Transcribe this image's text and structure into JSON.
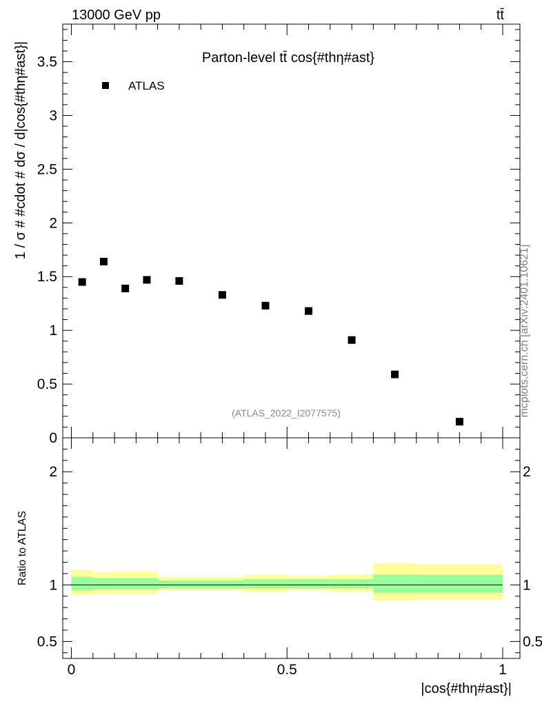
{
  "header": {
    "energy_label": "13000 GeV pp",
    "process_label": "tt̄"
  },
  "side_label": "mcplots.cern.ch [arXiv:2401.10621]",
  "watermark": "(ATLAS_2022_I2077575)",
  "chart_data": [
    {
      "type": "scatter",
      "title": "Parton-level tt̄ cos{#thη#ast}",
      "xlabel": "",
      "ylabel": "1 / σ # #cdot # dσ / d|cos{#thη#ast}|",
      "ylim": [
        0,
        3.85
      ],
      "xlim": [
        -0.02,
        1.04
      ],
      "y_ticks": [
        0,
        0.5,
        1,
        1.5,
        2,
        2.5,
        3,
        3.5
      ],
      "y_tick_labels": [
        "0",
        "0.5",
        "1",
        "1.5",
        "2",
        "2.5",
        "3",
        "3.5"
      ],
      "legend": {
        "placement": "top-left",
        "entries": [
          "ATLAS"
        ]
      },
      "series": [
        {
          "name": "ATLAS",
          "color": "#000000",
          "x": [
            0.025,
            0.075,
            0.125,
            0.175,
            0.25,
            0.35,
            0.45,
            0.55,
            0.65,
            0.75,
            0.9
          ],
          "y": [
            1.45,
            1.64,
            1.39,
            1.47,
            1.46,
            1.33,
            1.23,
            1.18,
            0.91,
            0.59,
            0.15
          ]
        }
      ]
    },
    {
      "type": "area",
      "ylabel": "Ratio to ATLAS",
      "xlabel": "|cos{#thη#ast}|",
      "xlim": [
        -0.02,
        1.04
      ],
      "ylim": [
        0.35,
        2.3
      ],
      "x_ticks": [
        0,
        0.5,
        1
      ],
      "x_tick_labels": [
        "0",
        "0.5",
        "1"
      ],
      "y_ticks": [
        0.5,
        1,
        2
      ],
      "y_tick_labels": [
        "0.5",
        "1",
        "2"
      ],
      "reference_line": 1,
      "bands": [
        {
          "color": "#ffff99",
          "bins": [
            [
              0,
              0.05,
              0.91,
              1.13
            ],
            [
              0.05,
              0.1,
              0.92,
              1.11
            ],
            [
              0.1,
              0.2,
              0.92,
              1.12
            ],
            [
              0.2,
              0.4,
              0.95,
              1.07
            ],
            [
              0.4,
              0.5,
              0.94,
              1.09
            ],
            [
              0.5,
              0.6,
              0.95,
              1.08
            ],
            [
              0.6,
              0.7,
              0.94,
              1.09
            ],
            [
              0.7,
              0.8,
              0.86,
              1.19
            ],
            [
              0.8,
              1.0,
              0.87,
              1.18
            ]
          ]
        },
        {
          "color": "#99ff99",
          "bins": [
            [
              0,
              0.05,
              0.95,
              1.07
            ],
            [
              0.05,
              0.1,
              0.96,
              1.06
            ],
            [
              0.1,
              0.2,
              0.96,
              1.06
            ],
            [
              0.2,
              0.4,
              0.97,
              1.04
            ],
            [
              0.4,
              0.5,
              0.97,
              1.05
            ],
            [
              0.5,
              0.6,
              0.97,
              1.05
            ],
            [
              0.6,
              0.7,
              0.97,
              1.05
            ],
            [
              0.7,
              0.8,
              0.93,
              1.09
            ],
            [
              0.8,
              1.0,
              0.93,
              1.09
            ]
          ]
        }
      ]
    }
  ]
}
